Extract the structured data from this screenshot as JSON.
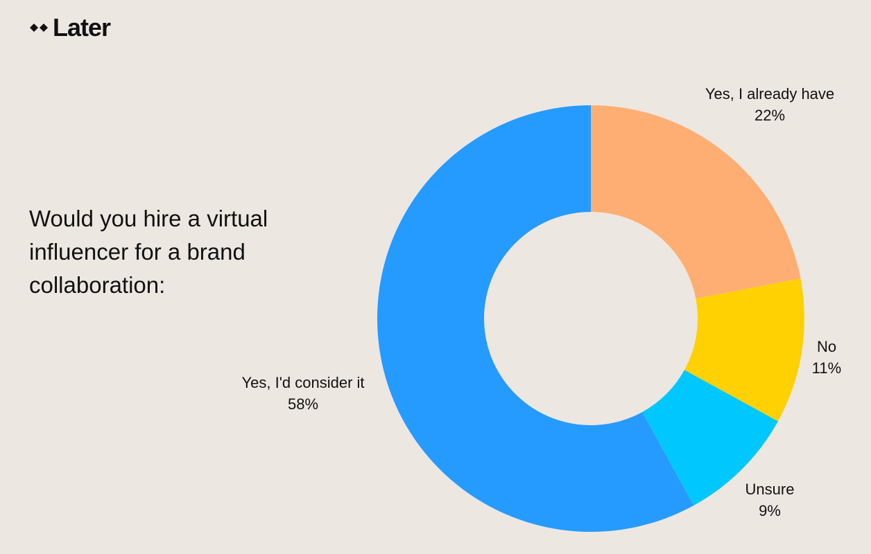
{
  "brand": {
    "name": "Later",
    "icon": "later-diamond-logo"
  },
  "question": "Would you hire a virtual influencer for a brand collaboration:",
  "chart_data": {
    "type": "pie",
    "title": "",
    "donut": true,
    "slices": [
      {
        "label": "Yes, I already have",
        "value": 22,
        "value_label": "22%",
        "color": "#ffae73"
      },
      {
        "label": "No",
        "value": 11,
        "value_label": "11%",
        "color": "#ffd103"
      },
      {
        "label": "Unsure",
        "value": 9,
        "value_label": "9%",
        "color": "#00c8ff"
      },
      {
        "label": "Yes, I'd consider it",
        "value": 58,
        "value_label": "58%",
        "color": "#259bff"
      }
    ]
  }
}
